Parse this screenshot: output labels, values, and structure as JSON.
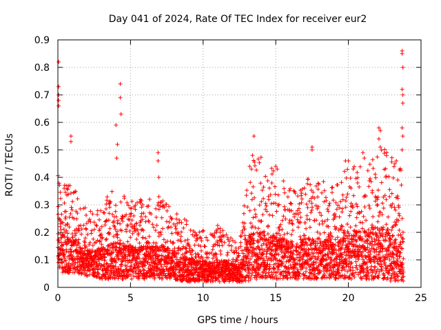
{
  "chart_data": {
    "type": "scatter",
    "title": "Day 041 of 2024, Rate Of TEC Index for receiver eur2",
    "xlabel": "GPS time / hours",
    "ylabel": "ROTI / TECUs",
    "xlim": [
      0,
      25
    ],
    "ylim": [
      0,
      0.9
    ],
    "xticks": [
      "0",
      "5",
      "10",
      "15",
      "20",
      "25"
    ],
    "yticks": [
      "0",
      "0.1",
      "0.2",
      "0.3",
      "0.4",
      "0.5",
      "0.6",
      "0.7",
      "0.8",
      "0.9"
    ],
    "grid": true,
    "marker": "+",
    "color": "#ff0000",
    "envelope": {
      "hours": [
        0,
        0.5,
        1,
        1.5,
        2,
        2.5,
        3,
        3.5,
        4,
        4.5,
        5,
        5.5,
        6,
        6.5,
        7,
        7.5,
        8,
        8.5,
        9,
        9.5,
        10,
        10.5,
        11,
        11.5,
        12,
        12.5,
        13,
        13.5,
        14,
        14.5,
        15,
        15.5,
        16,
        16.5,
        17,
        17.5,
        18,
        18.5,
        19,
        19.5,
        20,
        20.5,
        21,
        21.5,
        22,
        22.5,
        23,
        23.5,
        23.8
      ],
      "base": [
        0.06,
        0.05,
        0.05,
        0.05,
        0.04,
        0.04,
        0.03,
        0.03,
        0.03,
        0.03,
        0.03,
        0.03,
        0.03,
        0.03,
        0.03,
        0.03,
        0.03,
        0.02,
        0.02,
        0.02,
        0.02,
        0.02,
        0.02,
        0.02,
        0.02,
        0.02,
        0.02,
        0.03,
        0.03,
        0.03,
        0.03,
        0.03,
        0.03,
        0.03,
        0.03,
        0.03,
        0.03,
        0.03,
        0.03,
        0.03,
        0.03,
        0.03,
        0.03,
        0.03,
        0.03,
        0.03,
        0.02,
        0.02,
        0.02
      ],
      "top": [
        0.34,
        0.3,
        0.3,
        0.25,
        0.22,
        0.22,
        0.24,
        0.26,
        0.28,
        0.26,
        0.25,
        0.24,
        0.26,
        0.25,
        0.26,
        0.24,
        0.22,
        0.2,
        0.18,
        0.17,
        0.16,
        0.15,
        0.18,
        0.16,
        0.14,
        0.12,
        0.3,
        0.38,
        0.36,
        0.34,
        0.32,
        0.3,
        0.28,
        0.28,
        0.3,
        0.3,
        0.3,
        0.3,
        0.3,
        0.32,
        0.34,
        0.36,
        0.34,
        0.36,
        0.38,
        0.38,
        0.36,
        0.34,
        0.32
      ]
    },
    "highlights": [
      {
        "x": 0.05,
        "y": 0.82
      },
      {
        "x": 0.05,
        "y": 0.73
      },
      {
        "x": 0.05,
        "y": 0.7
      },
      {
        "x": 0.05,
        "y": 0.68
      },
      {
        "x": 0.05,
        "y": 0.66
      },
      {
        "x": 0.9,
        "y": 0.55
      },
      {
        "x": 0.9,
        "y": 0.53
      },
      {
        "x": 4.0,
        "y": 0.59
      },
      {
        "x": 4.1,
        "y": 0.52
      },
      {
        "x": 4.05,
        "y": 0.47
      },
      {
        "x": 4.3,
        "y": 0.74
      },
      {
        "x": 4.3,
        "y": 0.69
      },
      {
        "x": 4.35,
        "y": 0.63
      },
      {
        "x": 6.9,
        "y": 0.49
      },
      {
        "x": 6.9,
        "y": 0.46
      },
      {
        "x": 6.95,
        "y": 0.4
      },
      {
        "x": 6.95,
        "y": 0.33
      },
      {
        "x": 13.5,
        "y": 0.55
      },
      {
        "x": 13.4,
        "y": 0.48
      },
      {
        "x": 13.2,
        "y": 0.44
      },
      {
        "x": 15.0,
        "y": 0.44
      },
      {
        "x": 15.1,
        "y": 0.43
      },
      {
        "x": 17.5,
        "y": 0.51
      },
      {
        "x": 17.5,
        "y": 0.5
      },
      {
        "x": 19.8,
        "y": 0.46
      },
      {
        "x": 20.0,
        "y": 0.46
      },
      {
        "x": 21.0,
        "y": 0.49
      },
      {
        "x": 21.1,
        "y": 0.47
      },
      {
        "x": 22.1,
        "y": 0.58
      },
      {
        "x": 22.2,
        "y": 0.57
      },
      {
        "x": 22.1,
        "y": 0.54
      },
      {
        "x": 22.2,
        "y": 0.51
      },
      {
        "x": 23.2,
        "y": 0.45
      },
      {
        "x": 23.3,
        "y": 0.46
      },
      {
        "x": 23.7,
        "y": 0.86
      },
      {
        "x": 23.7,
        "y": 0.85
      },
      {
        "x": 23.75,
        "y": 0.8
      },
      {
        "x": 23.7,
        "y": 0.72
      },
      {
        "x": 23.75,
        "y": 0.7
      },
      {
        "x": 23.75,
        "y": 0.67
      },
      {
        "x": 23.7,
        "y": 0.58
      },
      {
        "x": 23.75,
        "y": 0.55
      },
      {
        "x": 23.7,
        "y": 0.5
      }
    ]
  }
}
